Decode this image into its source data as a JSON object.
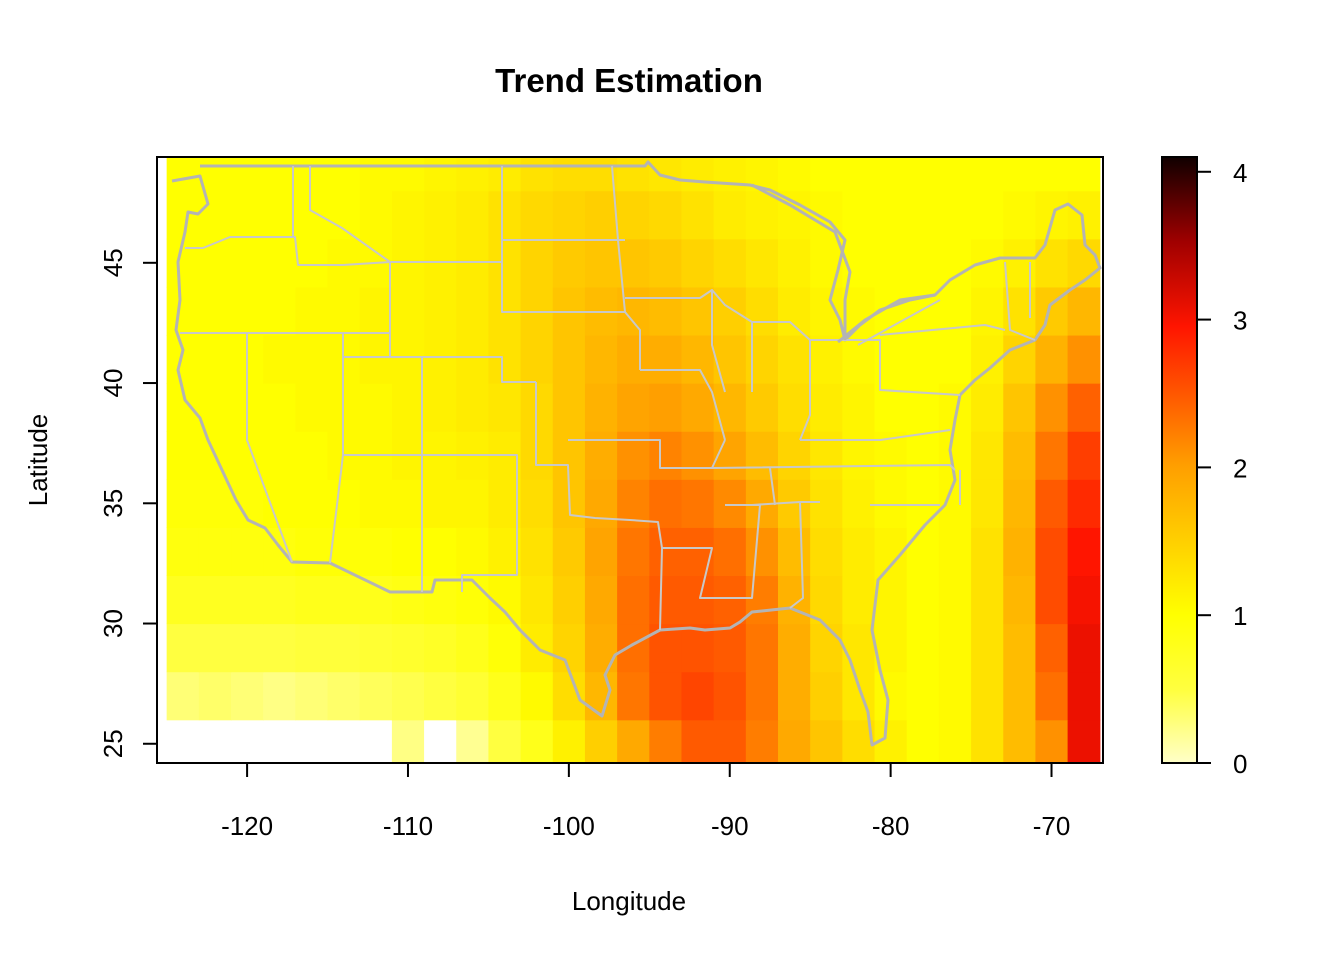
{
  "chart_data": {
    "type": "heatmap",
    "title": "Trend Estimation",
    "xlabel": "Longitude",
    "ylabel": "Latitude",
    "xlim": [
      -125.6,
      -66.8
    ],
    "ylim": [
      24.2,
      49.4
    ],
    "x_ticks": [
      -120,
      -110,
      -100,
      -90,
      -80,
      -70
    ],
    "y_ticks": [
      25,
      30,
      35,
      40,
      45
    ],
    "x_tick_labels": [
      "-120",
      "-110",
      "-100",
      "-90",
      "-80",
      "-70"
    ],
    "y_tick_labels": [
      "25",
      "30",
      "35",
      "40",
      "45"
    ],
    "colorbar": {
      "range": [
        0,
        4.1
      ],
      "ticks": [
        0,
        1,
        2,
        3,
        4
      ],
      "tick_labels": [
        "0",
        "1",
        "2",
        "3",
        "4"
      ],
      "palette": "heat (white - yellow - orange - red - black)"
    },
    "grid": false,
    "grid_resolution_deg": 2,
    "x_centers": [
      -124,
      -122,
      -120,
      -118,
      -116,
      -114,
      -112,
      -110,
      -108,
      -106,
      -104,
      -102,
      -100,
      -98,
      -96,
      -94,
      -92,
      -90,
      -88,
      -86,
      -84,
      -82,
      -80,
      -78,
      -76,
      -74,
      -72,
      -70,
      -68
    ],
    "y_centers": [
      25,
      27,
      29,
      31,
      33,
      35,
      37,
      39,
      41,
      43,
      45,
      47,
      49
    ],
    "z": [
      [
        null,
        null,
        null,
        null,
        null,
        null,
        null,
        0.25,
        null,
        0.2,
        0.5,
        0.8,
        1.15,
        1.5,
        1.9,
        2.25,
        2.5,
        2.5,
        2.25,
        1.9,
        1.6,
        1.35,
        1.15,
        1.0,
        1.05,
        1.3,
        1.7,
        2.1,
        3.1
      ],
      [
        0.3,
        0.35,
        0.3,
        0.25,
        0.3,
        0.35,
        0.4,
        0.45,
        0.5,
        0.6,
        0.8,
        1.05,
        1.35,
        1.75,
        2.3,
        2.55,
        2.65,
        2.55,
        2.3,
        1.85,
        1.5,
        1.25,
        1.05,
        1.0,
        1.05,
        1.3,
        1.7,
        2.35,
        3.1
      ],
      [
        0.5,
        0.5,
        0.5,
        0.5,
        0.55,
        0.55,
        0.6,
        0.65,
        0.7,
        0.8,
        0.95,
        1.2,
        1.45,
        1.85,
        2.35,
        2.55,
        2.55,
        2.5,
        2.3,
        1.85,
        1.45,
        1.25,
        1.1,
        1.0,
        1.05,
        1.3,
        1.7,
        2.45,
        3.1
      ],
      [
        0.75,
        0.75,
        0.75,
        0.75,
        0.8,
        0.8,
        0.8,
        0.85,
        0.9,
        0.95,
        1.05,
        1.25,
        1.5,
        1.9,
        2.35,
        2.5,
        2.5,
        2.45,
        2.25,
        1.8,
        1.4,
        1.2,
        1.1,
        1.0,
        1.05,
        1.3,
        1.75,
        2.6,
        3.05
      ],
      [
        0.9,
        0.9,
        0.9,
        0.9,
        0.95,
        0.95,
        0.95,
        1.0,
        1.0,
        1.05,
        1.15,
        1.3,
        1.55,
        1.95,
        2.3,
        2.45,
        2.45,
        2.35,
        2.1,
        1.7,
        1.35,
        1.2,
        1.1,
        1.0,
        1.05,
        1.3,
        1.8,
        2.6,
        3.0
      ],
      [
        0.95,
        0.95,
        0.95,
        1.0,
        1.0,
        1.0,
        1.05,
        1.05,
        1.1,
        1.1,
        1.2,
        1.35,
        1.6,
        1.9,
        2.2,
        2.35,
        2.3,
        2.15,
        1.9,
        1.55,
        1.3,
        1.15,
        1.05,
        1.0,
        1.05,
        1.25,
        1.75,
        2.5,
        2.85
      ],
      [
        1.0,
        1.0,
        1.0,
        1.0,
        1.0,
        1.05,
        1.05,
        1.1,
        1.1,
        1.15,
        1.2,
        1.4,
        1.6,
        1.85,
        2.1,
        2.2,
        2.1,
        1.95,
        1.7,
        1.45,
        1.25,
        1.1,
        1.05,
        1.0,
        1.05,
        1.25,
        1.7,
        2.3,
        2.7
      ],
      [
        1.0,
        1.0,
        1.0,
        1.0,
        1.05,
        1.05,
        1.05,
        1.1,
        1.15,
        1.2,
        1.25,
        1.4,
        1.6,
        1.8,
        1.95,
        2.0,
        1.9,
        1.75,
        1.55,
        1.35,
        1.2,
        1.1,
        1.0,
        1.0,
        1.05,
        1.2,
        1.6,
        2.1,
        2.45
      ],
      [
        1.0,
        1.0,
        1.0,
        1.05,
        1.05,
        1.05,
        1.1,
        1.1,
        1.15,
        1.2,
        1.3,
        1.45,
        1.6,
        1.75,
        1.85,
        1.85,
        1.75,
        1.6,
        1.45,
        1.3,
        1.15,
        1.05,
        1.0,
        1.0,
        1.0,
        1.15,
        1.45,
        1.8,
        2.1
      ],
      [
        1.0,
        1.0,
        1.0,
        1.0,
        1.05,
        1.05,
        1.1,
        1.1,
        1.15,
        1.2,
        1.3,
        1.45,
        1.6,
        1.7,
        1.75,
        1.7,
        1.6,
        1.5,
        1.35,
        1.2,
        1.1,
        1.05,
        1.0,
        1.0,
        1.0,
        1.1,
        1.3,
        1.55,
        1.75
      ],
      [
        1.0,
        1.0,
        1.0,
        1.0,
        1.0,
        1.05,
        1.05,
        1.1,
        1.15,
        1.2,
        1.3,
        1.45,
        1.55,
        1.6,
        1.6,
        1.55,
        1.45,
        1.35,
        1.25,
        1.15,
        1.05,
        1.0,
        1.0,
        1.0,
        1.0,
        1.05,
        1.15,
        1.3,
        1.4
      ],
      [
        1.0,
        1.0,
        1.0,
        1.0,
        1.0,
        1.0,
        1.05,
        1.1,
        1.15,
        1.2,
        1.3,
        1.4,
        1.45,
        1.5,
        1.45,
        1.4,
        1.3,
        1.2,
        1.15,
        1.1,
        1.05,
        1.0,
        1.0,
        1.0,
        1.0,
        1.0,
        1.05,
        1.1,
        1.15
      ],
      [
        1.0,
        1.0,
        1.0,
        1.0,
        1.0,
        1.0,
        1.05,
        1.05,
        1.1,
        1.15,
        1.2,
        1.3,
        1.35,
        1.35,
        1.3,
        1.25,
        1.2,
        1.15,
        1.1,
        1.05,
        1.0,
        1.0,
        1.0,
        1.0,
        1.0,
        1.0,
        1.0,
        1.0,
        1.0
      ]
    ],
    "overlay": "US state boundaries (grey lines)"
  },
  "colors": {
    "state_lines": "#c8c8c8",
    "coast_lines": "#b4b4b4",
    "frame": "#000000",
    "na_cell": "#ffffff"
  }
}
